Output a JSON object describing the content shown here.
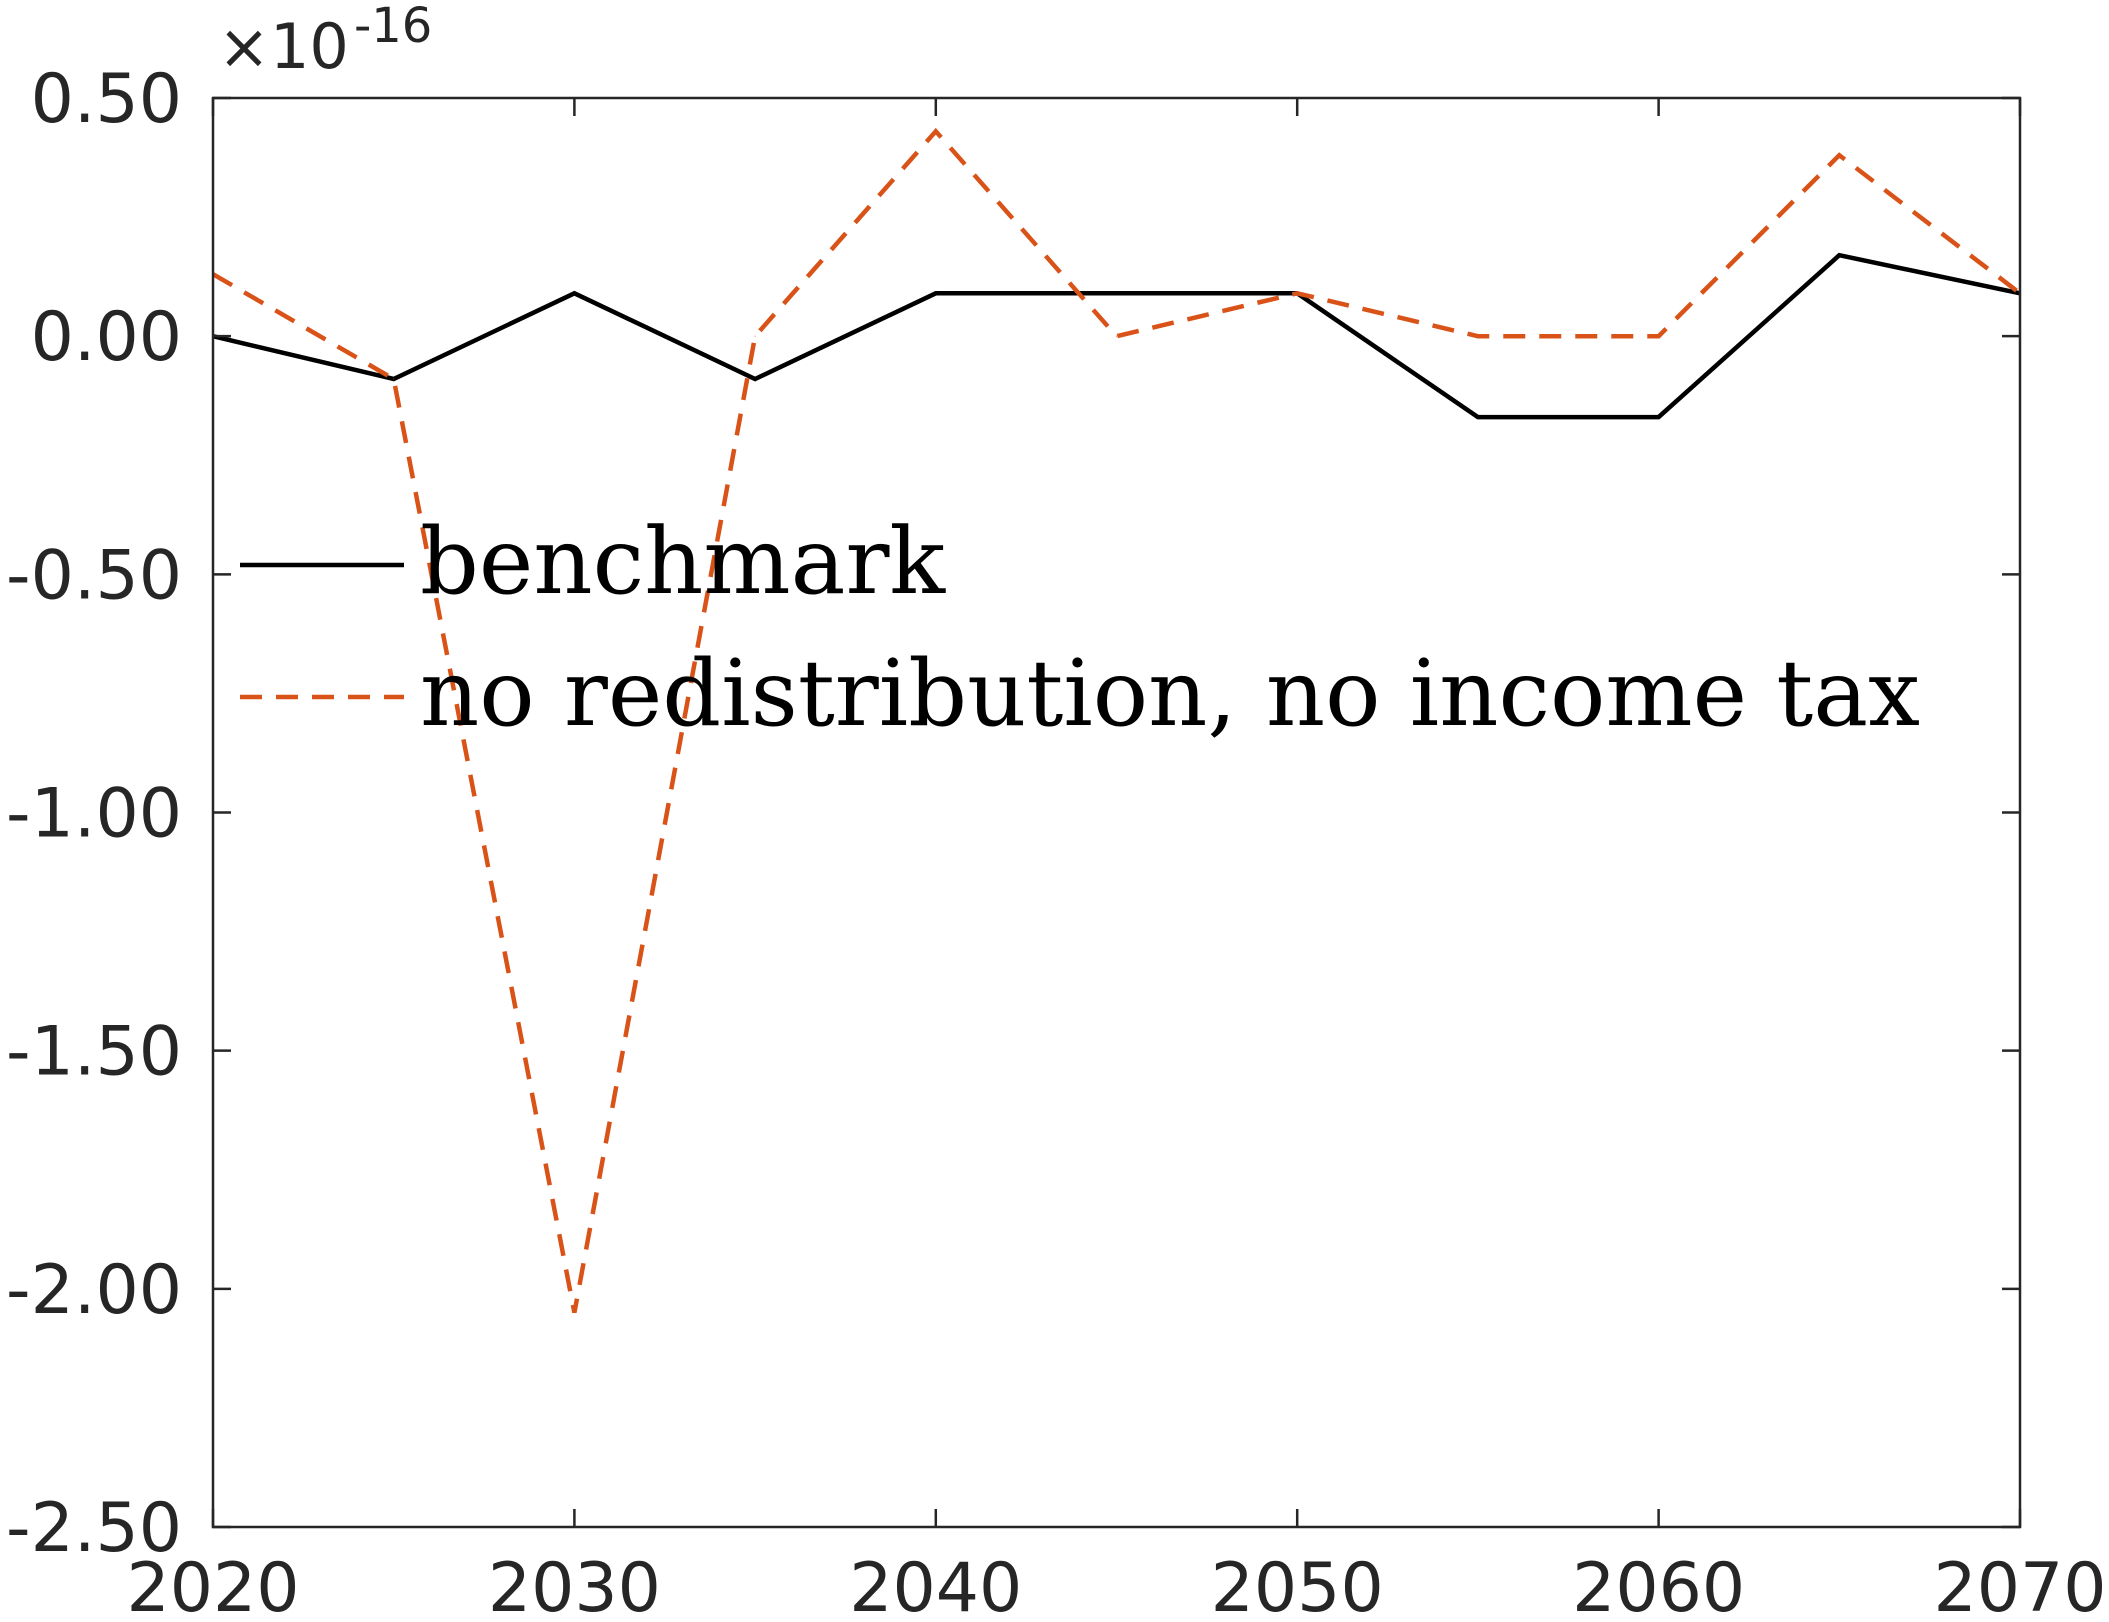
{
  "chart_data": {
    "type": "line",
    "title": "",
    "xlabel": "",
    "ylabel": "",
    "xlim": [
      2020,
      2070
    ],
    "ylim": [
      -2.5,
      0.5
    ],
    "y_exponent_label": {
      "prefix": "×10",
      "exponent": "-16"
    },
    "xticks": [
      2020,
      2030,
      2040,
      2050,
      2060,
      2070
    ],
    "xtick_labels": [
      "2020",
      "2030",
      "2040",
      "2050",
      "2060",
      "2070"
    ],
    "yticks": [
      -2.5,
      -2.0,
      -1.5,
      -1.0,
      -0.5,
      0.0,
      0.5
    ],
    "ytick_labels": [
      "-2.50",
      "-2.00",
      "-1.50",
      "-1.00",
      "-0.50",
      "0.00",
      "0.50"
    ],
    "grid": false,
    "legend_position": "center-left",
    "x": [
      2020,
      2025,
      2030,
      2035,
      2040,
      2045,
      2050,
      2055,
      2060,
      2065,
      2070
    ],
    "series": [
      {
        "name": "benchmark",
        "color": "#000000",
        "style": "solid",
        "values": [
          0.0,
          -0.09,
          0.09,
          -0.09,
          0.09,
          0.09,
          0.09,
          -0.17,
          -0.17,
          0.17,
          0.09
        ]
      },
      {
        "name": "no redistribution, no income tax",
        "color": "#d95319",
        "style": "dashed",
        "values": [
          0.13,
          -0.09,
          -2.05,
          0.0,
          0.43,
          0.0,
          0.09,
          0.0,
          0.0,
          0.38,
          0.09
        ]
      }
    ]
  }
}
